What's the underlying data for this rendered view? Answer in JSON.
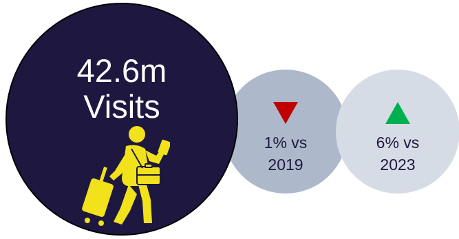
{
  "main": {
    "value": "42.6m",
    "label": "Visits",
    "icon": "traveler-with-luggage-icon",
    "background": "#1e1840",
    "icon_color": "#f2e21c"
  },
  "comparisons": [
    {
      "line1": "1% vs",
      "line2": "2019",
      "direction": "down",
      "arrow_color": "#c00000",
      "background": "#adb9ca"
    },
    {
      "line1": "6% vs",
      "line2": "2023",
      "direction": "up",
      "arrow_color": "#00b050",
      "background": "#d6dce5"
    }
  ]
}
